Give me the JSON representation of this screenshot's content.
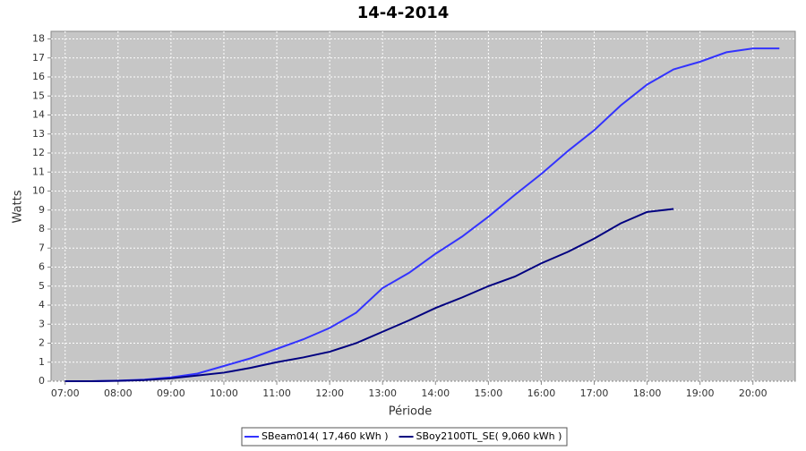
{
  "chart_data": {
    "type": "line",
    "title": "14-4-2014",
    "x_label": "Période",
    "y_label": "Watts",
    "x": [
      "07:00",
      "07:30",
      "08:00",
      "08:30",
      "09:00",
      "09:30",
      "10:00",
      "10:30",
      "11:00",
      "11:30",
      "12:00",
      "12:30",
      "13:00",
      "13:30",
      "14:00",
      "14:30",
      "15:00",
      "15:30",
      "16:00",
      "16:30",
      "17:00",
      "17:30",
      "18:00",
      "18:30",
      "19:00",
      "19:30",
      "20:00",
      "20:30"
    ],
    "series": [
      {
        "name": "SBeam014( 17,460 kWh )",
        "color": "#3333ff",
        "values": [
          0,
          0,
          0.03,
          0.08,
          0.2,
          0.4,
          0.8,
          1.2,
          1.7,
          2.2,
          2.8,
          3.6,
          4.9,
          5.7,
          6.7,
          7.6,
          8.65,
          9.8,
          10.9,
          12.1,
          13.2,
          14.5,
          15.6,
          16.4,
          16.8,
          17.3,
          17.5,
          17.5
        ]
      },
      {
        "name": "SBoy2100TL_SE( 9,060 kWh )",
        "color": "#000080",
        "values": [
          0,
          0,
          0.02,
          0.06,
          0.15,
          0.3,
          0.45,
          0.7,
          1.0,
          1.25,
          1.55,
          2.0,
          2.6,
          3.2,
          3.85,
          4.4,
          5.0,
          5.5,
          6.2,
          6.8,
          7.5,
          8.3,
          8.9,
          9.06,
          null,
          null,
          null,
          null
        ]
      }
    ],
    "xlim": [
      "06:44",
      "20:48"
    ],
    "xticks": [
      "07:00",
      "08:00",
      "09:00",
      "10:00",
      "11:00",
      "12:00",
      "13:00",
      "14:00",
      "15:00",
      "16:00",
      "17:00",
      "18:00",
      "19:00",
      "20:00"
    ],
    "ylim": [
      0,
      18.4
    ],
    "yticks": [
      0,
      1,
      2,
      3,
      4,
      5,
      6,
      7,
      8,
      9,
      10,
      11,
      12,
      13,
      14,
      15,
      16,
      17,
      18
    ],
    "grid": true,
    "legend": "bottom"
  }
}
